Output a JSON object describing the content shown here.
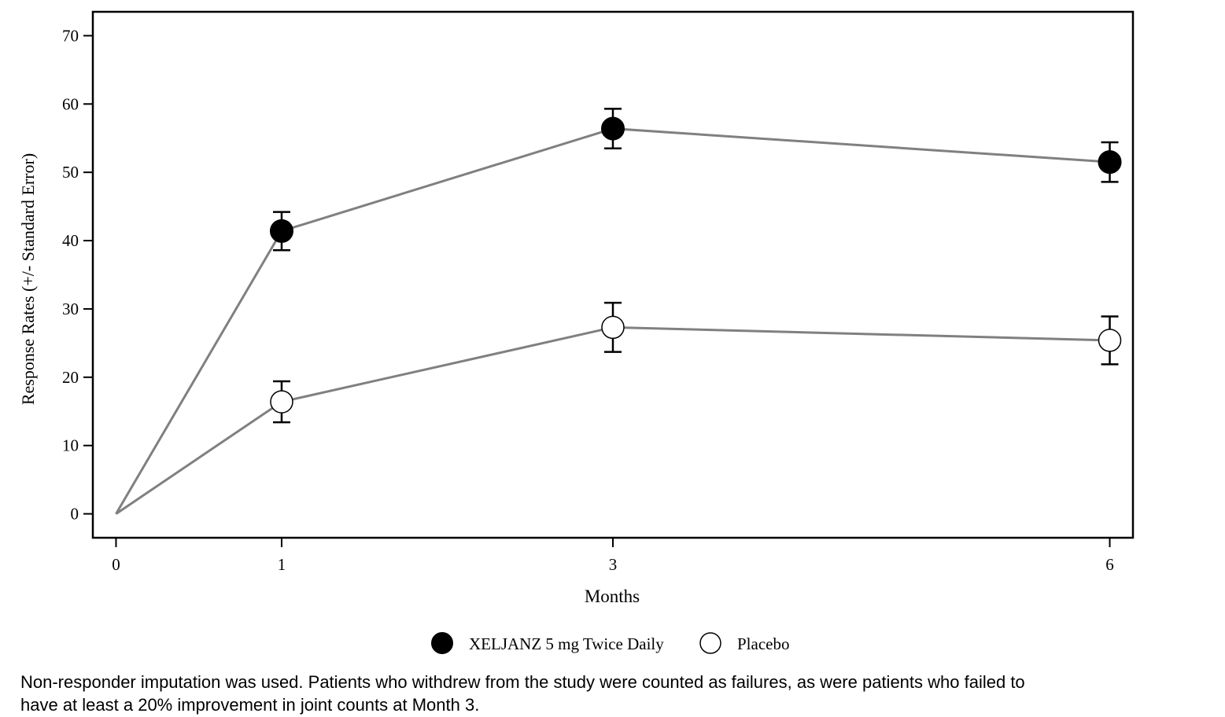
{
  "chart_data": {
    "type": "line",
    "title": "",
    "xlabel": "Months",
    "ylabel": "Response Rates (+/- Standard Error)",
    "x": [
      0,
      1,
      3,
      6
    ],
    "x_ticks": [
      "0",
      "1",
      "3",
      "6"
    ],
    "y_ticks": [
      "0",
      "10",
      "20",
      "30",
      "40",
      "50",
      "60",
      "70"
    ],
    "ylim": [
      -3.5,
      73.5
    ],
    "xlim": [
      -0.14,
      6.14
    ],
    "grid": false,
    "legend_position": "bottom-center",
    "series": [
      {
        "name": "XELJANZ 5 mg Twice Daily",
        "marker": "filled-circle",
        "values": [
          0,
          41.4,
          56.4,
          51.5
        ],
        "se": [
          0,
          2.8,
          2.9,
          2.9
        ],
        "line_color": "#808080",
        "marker_color": "#000000"
      },
      {
        "name": "Placebo",
        "marker": "open-circle",
        "values": [
          0,
          16.4,
          27.3,
          25.4
        ],
        "se": [
          0,
          3.0,
          3.6,
          3.5
        ],
        "line_color": "#808080",
        "marker_color": "#ffffff"
      }
    ]
  },
  "footnote": {
    "line1": "Non-responder imputation was used. Patients who withdrew from the study were counted as failures, as were patients who failed to",
    "line2": "have at least a 20% improvement in joint counts at Month 3."
  }
}
